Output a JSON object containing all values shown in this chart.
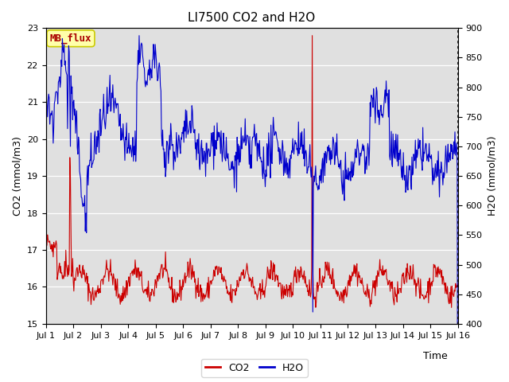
{
  "title": "LI7500 CO2 and H2O",
  "xlabel": "Time",
  "ylabel_left": "CO2 (mmol/m3)",
  "ylabel_right": "H2O (mmol/m3)",
  "ylim_left": [
    15.0,
    23.0
  ],
  "ylim_right": [
    400,
    900
  ],
  "x_tick_days": [
    1,
    2,
    3,
    4,
    5,
    6,
    7,
    8,
    9,
    10,
    11,
    12,
    13,
    14,
    15,
    16
  ],
  "x_tick_labels": [
    "Jul 1",
    "Jul 2",
    "Jul 3",
    "Jul 4",
    "Jul 5",
    "Jul 6",
    "Jul 7",
    "Jul 8",
    "Jul 9",
    "Jul 10",
    "Jul 11",
    "Jul 12",
    "Jul 13",
    "Jul 14",
    "Jul 15",
    "Jul 16"
  ],
  "co2_color": "#cc0000",
  "h2o_color": "#0000cc",
  "background_color": "#e0e0e0",
  "figure_background": "#ffffff",
  "annotation_text": "MB_flux",
  "annotation_bg": "#ffffaa",
  "annotation_border": "#cccc00",
  "annotation_color": "#aa0000",
  "title_fontsize": 11,
  "axis_label_fontsize": 9,
  "tick_fontsize": 8,
  "legend_fontsize": 9,
  "linewidth": 0.8
}
